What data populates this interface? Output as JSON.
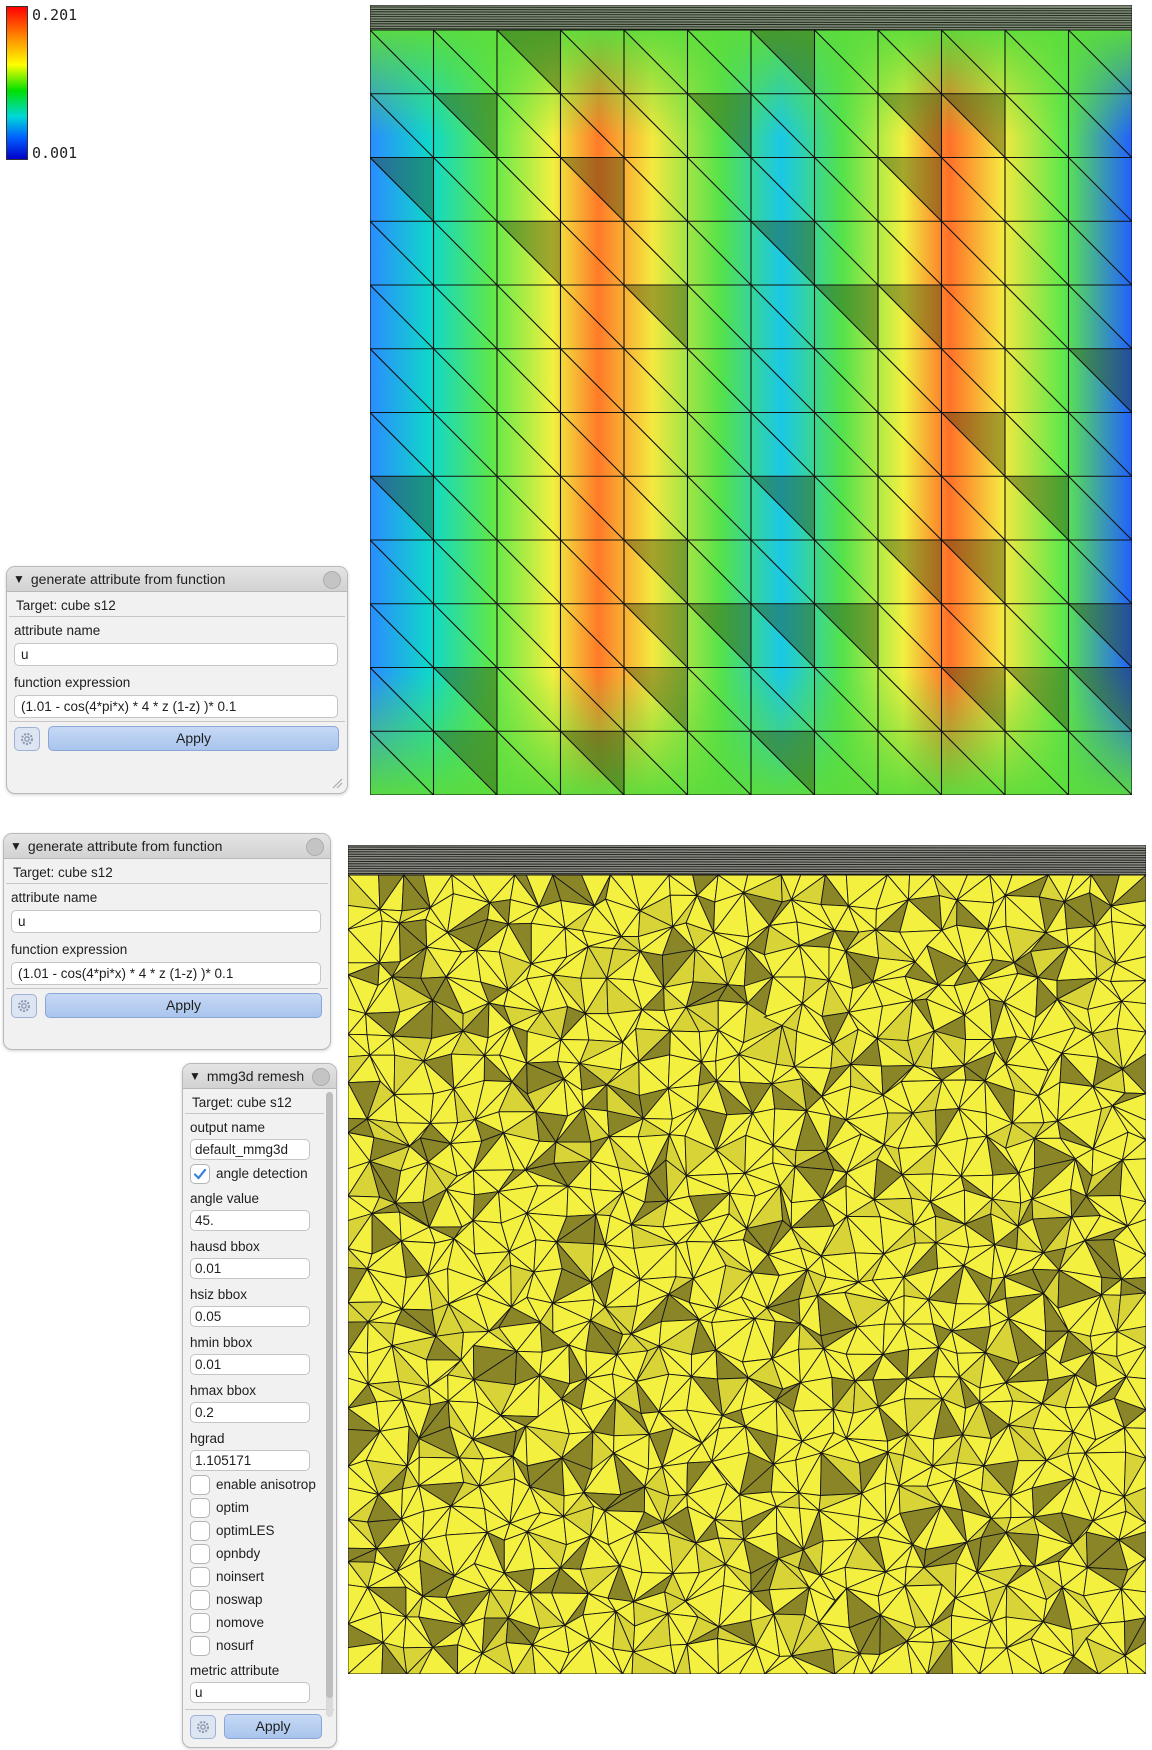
{
  "colorbar": {
    "max": "0.201",
    "min": "0.001"
  },
  "panel1": {
    "title": "generate attribute from function",
    "target": "Target: cube s12",
    "attr_label": "attribute name",
    "attr_value": "u",
    "func_label": "function expression",
    "func_value": "(1.01 - cos(4*pi*x) * 4 * z (1-z) )* 0.1",
    "apply": "Apply"
  },
  "panel2": {
    "title": "generate attribute from function",
    "target": "Target: cube s12",
    "attr_label": "attribute name",
    "attr_value": "u",
    "func_label": "function expression",
    "func_value": "(1.01 - cos(4*pi*x) * 4 * z (1-z) )* 0.1",
    "apply": "Apply"
  },
  "mmg": {
    "title": "mmg3d remesh",
    "target": "Target: cube s12",
    "output_label": "output name",
    "output_value": "default_mmg3d",
    "angle_detection": "angle detection",
    "angle_value_label": "angle value",
    "angle_value": "45.",
    "hausd_label": "hausd bbox",
    "hausd_value": "0.01",
    "hsiz_label": "hsiz bbox",
    "hsiz_value": "0.05",
    "hmin_label": "hmin bbox",
    "hmin_value": "0.01",
    "hmax_label": "hmax bbox",
    "hmax_value": "0.2",
    "hgrad_label": "hgrad",
    "hgrad_value": "1.105171",
    "enable_anisotrop": "enable anisotrop",
    "optim": "optim",
    "optimLES": "optimLES",
    "opnbdy": "opnbdy",
    "noinsert": "noinsert",
    "noswap": "noswap",
    "nomove": "nomove",
    "nosurf": "nosurf",
    "metric_label": "metric attribute",
    "metric_value": "u",
    "apply": "Apply"
  },
  "colors": {
    "mesh_yellow": "#f4f040",
    "button_blue": "#b7cff1"
  }
}
